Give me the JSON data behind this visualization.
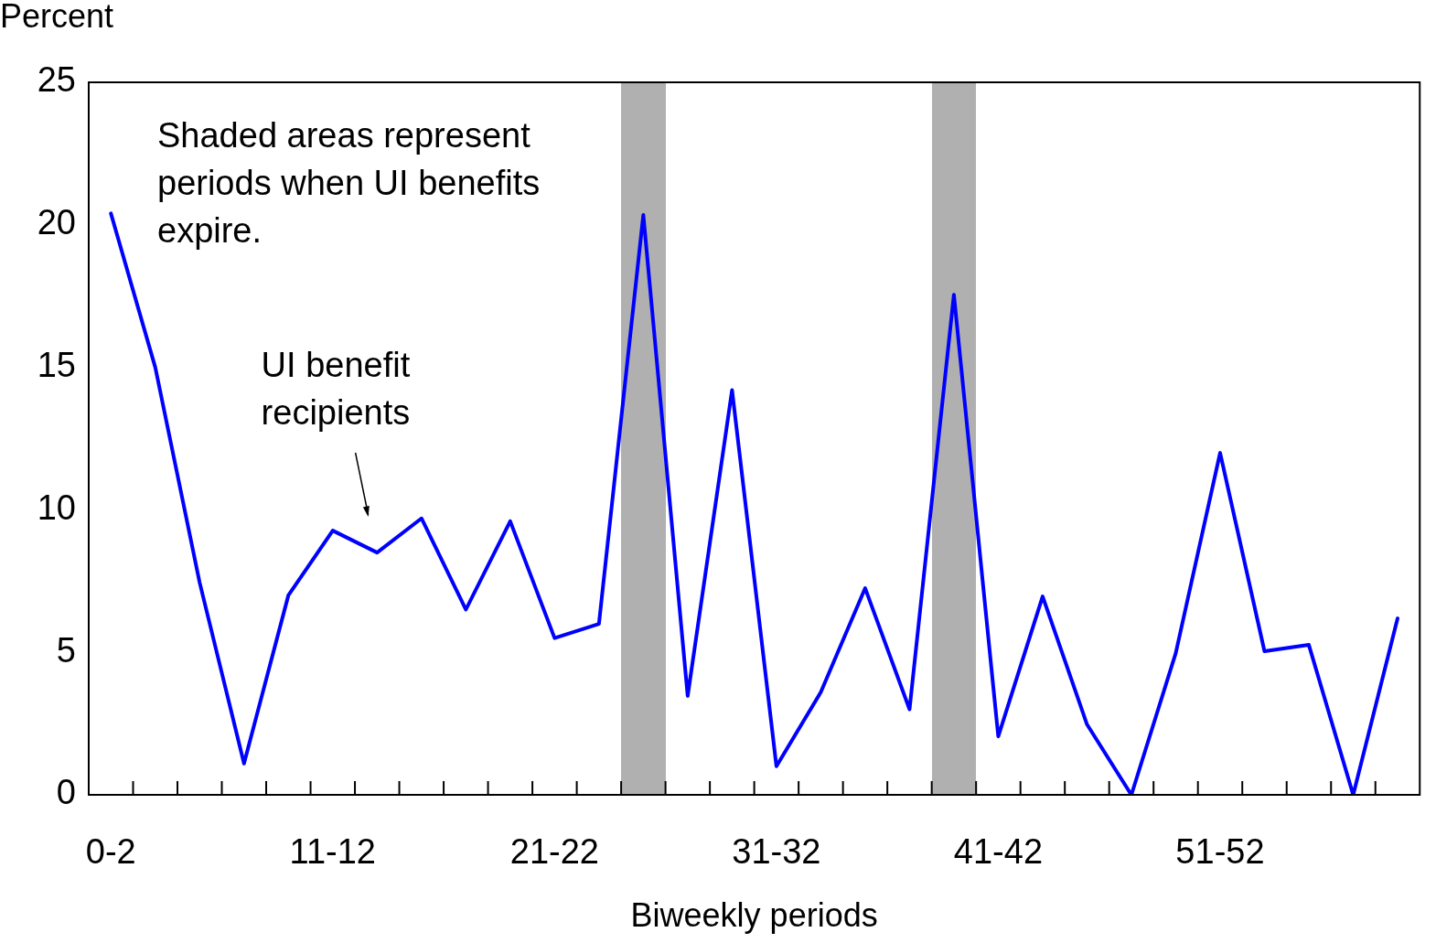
{
  "chart_data": {
    "type": "line",
    "xlabel": "Biweekly periods",
    "ylabel": "Percent",
    "categories": [
      "0-2",
      null,
      null,
      null,
      null,
      "11-12",
      null,
      null,
      null,
      null,
      "21-22",
      null,
      null,
      null,
      null,
      "31-32",
      null,
      null,
      null,
      null,
      "41-42",
      null,
      null,
      null,
      null,
      "51-52",
      null,
      null,
      null,
      null
    ],
    "series": [
      {
        "color": "#0000ff",
        "values": [
          20.4,
          15.0,
          7.45,
          1.1,
          7.0,
          9.27,
          8.5,
          9.7,
          6.5,
          9.6,
          5.5,
          6.0,
          20.35,
          3.47,
          14.2,
          1.0,
          3.6,
          7.25,
          3.0,
          17.55,
          2.05,
          6.96,
          2.47,
          0,
          4.97,
          12.0,
          5.04,
          5.26,
          0,
          6.19
        ]
      }
    ],
    "ylim": [
      0,
      25
    ],
    "yticks": [
      0,
      5,
      10,
      15,
      20,
      25
    ],
    "grid": false,
    "legend": false,
    "marker": "none",
    "line_style": "solid",
    "annotations": [
      "Shaded areas represent periods when UI benefits expire.",
      "UI benefit recipients"
    ]
  }
}
